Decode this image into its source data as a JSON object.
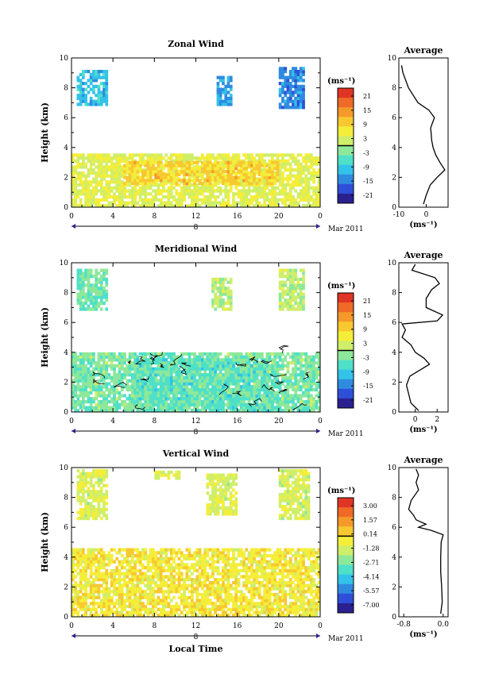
{
  "colormap": [
    "#2b2090",
    "#2f4fd8",
    "#2f8be0",
    "#33c2e8",
    "#4fe0c8",
    "#8ee89a",
    "#cfee6a",
    "#f4ee3a",
    "#f8c830",
    "#f59a2a",
    "#ef6a26",
    "#e03524"
  ],
  "chart_data": [
    {
      "type": "heatmap",
      "title": "Zonal Wind",
      "ylabel": "Height (km)",
      "ylim": [
        0,
        10
      ],
      "yticks": [
        "0",
        "2",
        "4",
        "6",
        "8",
        "10"
      ],
      "xlim": [
        0,
        24
      ],
      "xticks": [
        "0",
        "4",
        "8",
        "12",
        "16",
        "20",
        "0"
      ],
      "date_label": "8",
      "month_label": "Mar 2011",
      "colorbar_unit": "(ms⁻¹)",
      "colorbar_ticks": [
        "21",
        "15",
        "9",
        "3",
        "-3",
        "-9",
        "-15",
        "-21"
      ],
      "colorbar_range": [
        -24,
        24
      ],
      "contour_zero": false,
      "echoes": [
        {
          "t0": 0.0,
          "t1": 24.0,
          "z0": 0.0,
          "z1": 3.5,
          "v": 4
        },
        {
          "t0": 5.0,
          "t1": 20.0,
          "z0": 1.5,
          "z1": 3.0,
          "v": 9
        },
        {
          "t0": 0.5,
          "t1": 3.5,
          "z0": 6.8,
          "z1": 9.2,
          "v": -10
        },
        {
          "t0": 14.0,
          "t1": 15.5,
          "z0": 6.8,
          "z1": 8.8,
          "v": -12
        },
        {
          "t0": 20.0,
          "t1": 22.5,
          "z0": 6.6,
          "z1": 9.3,
          "v": -14
        }
      ],
      "profile": {
        "title": "Average",
        "xlabel": "(ms⁻¹)",
        "xlim": [
          -10,
          8
        ],
        "xticks": [
          "-10",
          "0"
        ],
        "heights": [
          0.2,
          0.8,
          1.5,
          2.0,
          2.5,
          3.0,
          3.5,
          4.0,
          4.5,
          5.0,
          5.3,
          5.5,
          6.0,
          6.5,
          7.0,
          8.0,
          9.0,
          9.5
        ],
        "values": [
          -1.0,
          0.0,
          1.5,
          4.0,
          6.8,
          5.0,
          3.5,
          2.5,
          2.0,
          1.8,
          1.6,
          2.0,
          3.0,
          1.0,
          -3.0,
          -6.5,
          -8.5,
          -9.0
        ]
      }
    },
    {
      "type": "heatmap",
      "title": "Meridional Wind",
      "ylabel": "Height (km)",
      "ylim": [
        0,
        10
      ],
      "yticks": [
        "0",
        "2",
        "4",
        "6",
        "8",
        "10"
      ],
      "xlim": [
        0,
        24
      ],
      "xticks": [
        "0",
        "4",
        "8",
        "12",
        "16",
        "20",
        "0"
      ],
      "date_label": "8",
      "month_label": "Mar 2011",
      "colorbar_unit": "(ms⁻¹)",
      "colorbar_ticks": [
        "21",
        "15",
        "9",
        "3",
        "-3",
        "-9",
        "-15",
        "-21"
      ],
      "colorbar_range": [
        -24,
        24
      ],
      "contour_zero": true,
      "echoes": [
        {
          "t0": 0.0,
          "t1": 24.0,
          "z0": 0.0,
          "z1": 4.0,
          "v": -3
        },
        {
          "t0": 6.0,
          "t1": 20.0,
          "z0": 0.0,
          "z1": 3.5,
          "v": -5
        },
        {
          "t0": 0.5,
          "t1": 3.5,
          "z0": 6.8,
          "z1": 9.5,
          "v": -4
        },
        {
          "t0": 13.5,
          "t1": 15.5,
          "z0": 6.8,
          "z1": 9.0,
          "v": 1
        },
        {
          "t0": 20.0,
          "t1": 22.5,
          "z0": 6.8,
          "z1": 9.5,
          "v": 1
        }
      ],
      "profile": {
        "title": "Average",
        "xlabel": "(ms⁻¹)",
        "xlim": [
          -1.5,
          3
        ],
        "xticks": [
          "0",
          "2"
        ],
        "heights": [
          0.1,
          0.6,
          1.2,
          1.8,
          2.4,
          2.8,
          3.2,
          3.6,
          4.0,
          4.5,
          5.0,
          5.5,
          5.9,
          6.1,
          6.5,
          7.0,
          7.6,
          8.2,
          8.6,
          9.0,
          9.5,
          9.9
        ],
        "values": [
          0.3,
          -0.4,
          -0.6,
          -0.8,
          -0.5,
          0.4,
          1.3,
          0.8,
          0.0,
          -0.4,
          -1.2,
          -0.9,
          -1.2,
          2.0,
          2.5,
          1.0,
          1.0,
          1.5,
          2.2,
          1.8,
          -0.3,
          0.0
        ]
      }
    },
    {
      "type": "heatmap",
      "title": "Vertical Wind",
      "ylabel": "Height (km)",
      "ylim": [
        0,
        10
      ],
      "yticks": [
        "0",
        "2",
        "4",
        "6",
        "8",
        "10"
      ],
      "xlim": [
        0,
        24
      ],
      "xticks": [
        "0",
        "4",
        "8",
        "12",
        "16",
        "20",
        "0"
      ],
      "date_label": "8",
      "month_label": "Mar 2011",
      "xlabel": "Local Time",
      "colorbar_unit": "(ms⁻¹)",
      "colorbar_ticks": [
        "3.00",
        "1.57",
        "0.14",
        "-1.28",
        "-2.71",
        "-4.14",
        "-5.57",
        "-7.00"
      ],
      "colorbar_range": [
        -8,
        4
      ],
      "contour_zero": false,
      "echoes": [
        {
          "t0": 0.0,
          "t1": 24.0,
          "z0": 0.0,
          "z1": 4.5,
          "v": -0.4
        },
        {
          "t0": 0.5,
          "t1": 3.5,
          "z0": 6.5,
          "z1": 9.8,
          "v": -1.2
        },
        {
          "t0": 8.0,
          "t1": 10.5,
          "z0": 9.2,
          "z1": 9.8,
          "v": -1.0
        },
        {
          "t0": 13.0,
          "t1": 16.0,
          "z0": 6.8,
          "z1": 9.5,
          "v": -1.2
        },
        {
          "t0": 20.0,
          "t1": 23.0,
          "z0": 6.5,
          "z1": 9.8,
          "v": -1.3
        }
      ],
      "profile": {
        "title": "Average",
        "xlabel": "(ms⁻¹)",
        "xlim": [
          -0.9,
          0.1
        ],
        "xticks": [
          "-0.8",
          "0.0"
        ],
        "heights": [
          0.2,
          1.0,
          2.0,
          3.0,
          4.0,
          5.0,
          5.5,
          5.8,
          6.0,
          6.2,
          6.5,
          6.8,
          7.2,
          7.8,
          8.5,
          9.0,
          9.5,
          9.9
        ],
        "values": [
          -0.05,
          -0.02,
          -0.03,
          -0.05,
          -0.05,
          -0.04,
          0.0,
          -0.25,
          -0.5,
          -0.35,
          -0.55,
          -0.6,
          -0.7,
          -0.65,
          -0.5,
          -0.55,
          -0.5,
          -0.55
        ]
      }
    }
  ]
}
